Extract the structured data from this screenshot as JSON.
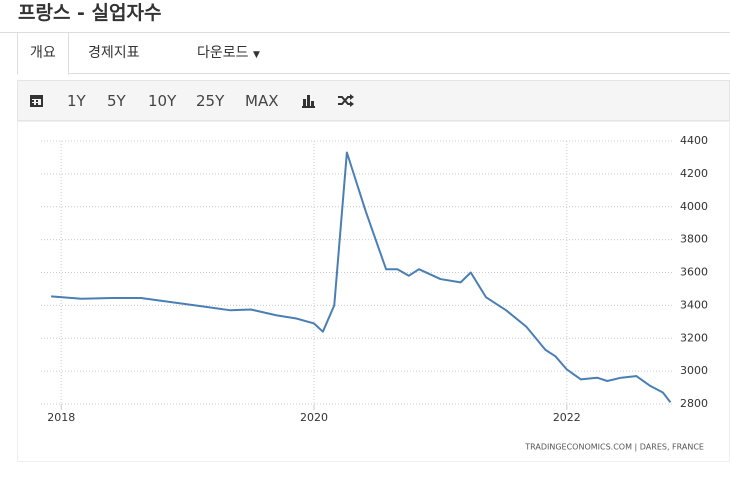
{
  "header": {
    "title": "프랑스 - 실업자수"
  },
  "tabs": [
    "개요",
    "경제지표",
    "다운로드"
  ],
  "toolbar": [
    "1Y",
    "5Y",
    "10Y",
    "25Y",
    "MAX"
  ],
  "chart_data": {
    "type": "line",
    "x": [
      2017.92,
      2018.16,
      2018.4,
      2018.63,
      2018.87,
      2019.11,
      2019.34,
      2019.5,
      2019.7,
      2019.86,
      2020.0,
      2020.07,
      2020.16,
      2020.26,
      2020.41,
      2020.57,
      2020.66,
      2020.75,
      2020.83,
      2021.0,
      2021.16,
      2021.24,
      2021.36,
      2021.52,
      2021.68,
      2021.83,
      2021.91,
      2022.0,
      2022.11,
      2022.24,
      2022.32,
      2022.43,
      2022.55,
      2022.66,
      2022.76,
      2022.82
    ],
    "series": [
      {
        "color": "#4a7fb5",
        "values": [
          3455,
          3440,
          3445,
          3445,
          3420,
          3395,
          3370,
          3375,
          3340,
          3320,
          3290,
          3240,
          3400,
          4330,
          3970,
          3620,
          3620,
          3580,
          3620,
          3560,
          3540,
          3600,
          3450,
          3370,
          3270,
          3130,
          3090,
          3010,
          2950,
          2960,
          2940,
          2960,
          2970,
          2910,
          2870,
          2810
        ]
      }
    ],
    "xlim": [
      2017.84,
      2022.84
    ],
    "ylim": [
      2800,
      4400
    ],
    "xticks": [
      2018,
      2020,
      2022
    ],
    "yticks": [
      2800,
      3000,
      3200,
      3400,
      3600,
      3800,
      4000,
      4200,
      4400
    ],
    "grid": true,
    "source": "TRADINGECONOMICS.COM | DARES, FRANCE"
  }
}
